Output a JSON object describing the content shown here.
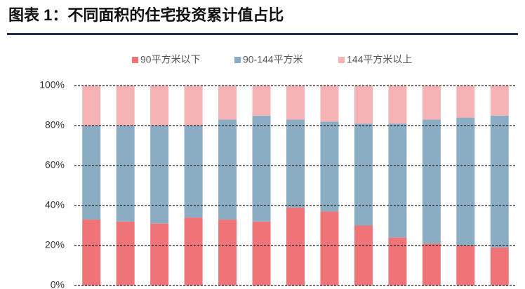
{
  "chart_data": {
    "type": "stacked_bar",
    "title": "图表 1：不同面积的住宅投资累计值占比",
    "categories": [
      null,
      null,
      null,
      null,
      null,
      null,
      null,
      null,
      null,
      null,
      null,
      null,
      null
    ],
    "series": [
      {
        "name": "90平方米以下",
        "color": "#ef7478",
        "values": [
          33,
          32,
          31,
          34,
          33,
          32,
          39,
          37,
          30,
          24,
          21,
          20,
          19
        ]
      },
      {
        "name": "90-144平方米",
        "color": "#8badc4",
        "values": [
          47,
          48,
          49,
          46,
          50,
          53,
          44,
          45,
          51,
          57,
          62,
          64,
          66
        ]
      },
      {
        "name": "144平方米以上",
        "color": "#f5b3b5",
        "values": [
          20,
          20,
          20,
          20,
          17,
          15,
          17,
          18,
          19,
          19,
          17,
          16,
          15
        ]
      }
    ],
    "ylim": [
      0,
      100
    ],
    "yticks": [
      {
        "value": 0,
        "label": "0%"
      },
      {
        "value": 20,
        "label": "20%"
      },
      {
        "value": 40,
        "label": "40%"
      },
      {
        "value": 60,
        "label": "60%"
      },
      {
        "value": 80,
        "label": "80%"
      },
      {
        "value": 100,
        "label": "100%"
      }
    ],
    "grid": true,
    "legend": "top"
  }
}
